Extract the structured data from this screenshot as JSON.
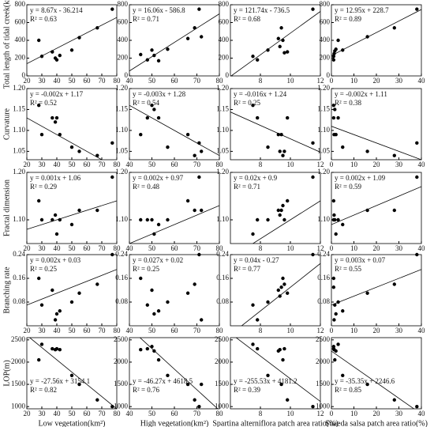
{
  "chart_data": [
    {
      "type": "scatter",
      "ylabel": "Total length of tidal creek(km)",
      "x": [
        28,
        30,
        37,
        40,
        42,
        50,
        55,
        67,
        77,
        39
      ],
      "values": [
        400,
        220,
        270,
        180,
        230,
        290,
        430,
        540,
        750,
        200
      ],
      "xlim": [
        20,
        80
      ],
      "xticks": [
        20,
        30,
        40,
        50,
        60,
        70,
        80
      ],
      "ylim": [
        0,
        800
      ],
      "yticks": [
        0,
        200,
        400,
        600,
        800
      ],
      "equation": "y = 8.67x - 36.214",
      "r2": "R² = 0.63",
      "fit": {
        "slope": 8.67,
        "intercept": -36.214
      }
    },
    {
      "type": "scatter",
      "x": [
        45,
        48,
        50,
        51,
        53,
        57,
        66,
        69,
        71,
        72
      ],
      "values": [
        240,
        180,
        290,
        230,
        170,
        300,
        420,
        540,
        750,
        440
      ],
      "xlim": [
        40,
        80
      ],
      "xticks": [
        40,
        50,
        60,
        70,
        80
      ],
      "ylim": [
        0,
        800
      ],
      "yticks": [
        0,
        200,
        400,
        600,
        800
      ],
      "equation": "y = 16.06x - 586.8",
      "r2": "R² = 0.71",
      "fit": {
        "slope": 16.06,
        "intercept": -586.8
      }
    },
    {
      "type": "scatter",
      "x": [
        7.5,
        7.8,
        8.5,
        9.2,
        9.4,
        9.5,
        9.6,
        9.8,
        11.5,
        9.3
      ],
      "values": [
        220,
        180,
        290,
        420,
        540,
        400,
        260,
        270,
        750,
        330
      ],
      "xlim": [
        6,
        12
      ],
      "xticks": [
        8,
        10,
        12
      ],
      "ylim": [
        0,
        800
      ],
      "yticks": [
        0,
        200,
        400,
        600,
        800
      ],
      "equation": "y = 121.74x - 736.5",
      "r2": "R² = 0.68",
      "fit": {
        "slope": 121.74,
        "intercept": -736.5
      }
    },
    {
      "type": "scatter",
      "x": [
        1,
        1,
        1.5,
        2,
        3,
        5,
        16,
        28,
        38,
        1.2
      ],
      "values": [
        180,
        220,
        280,
        300,
        400,
        290,
        440,
        540,
        750,
        250
      ],
      "xlim": [
        0,
        40
      ],
      "xticks": [
        0,
        10,
        20,
        30,
        40
      ],
      "ylim": [
        0,
        800
      ],
      "yticks": [
        0,
        200,
        400,
        600,
        800
      ],
      "equation": "y = 12.95x + 228.7",
      "r2": "R² = 0.89",
      "fit": {
        "slope": 12.95,
        "intercept": 228.7
      }
    },
    {
      "type": "scatter",
      "ylabel": "Curvature",
      "x": [
        28,
        30,
        37,
        40,
        42,
        50,
        55,
        67,
        77,
        39
      ],
      "values": [
        1.16,
        1.09,
        1.13,
        1.13,
        1.09,
        1.06,
        1.05,
        1.04,
        1.07,
        1.12
      ],
      "xlim": [
        20,
        80
      ],
      "xticks": [
        20,
        30,
        40,
        50,
        60,
        70,
        80
      ],
      "ylim": [
        1.03,
        1.2
      ],
      "yticks": [
        {
          "value": 1.05,
          "label": "1.05"
        },
        {
          "value": 1.1,
          "label": "1.10"
        },
        1.15,
        {
          "value": 1.2,
          "label": "1.20"
        }
      ],
      "equation": "y = -0.002x + 1.17",
      "r2": "R² = 0.52",
      "fit": {
        "slope": -0.002,
        "intercept": 1.17
      }
    },
    {
      "type": "scatter",
      "x": [
        45,
        48,
        50,
        51,
        53,
        57,
        66,
        69,
        71,
        72
      ],
      "values": [
        1.09,
        1.13,
        1.16,
        1.15,
        1.13,
        1.06,
        1.09,
        1.04,
        1.07,
        1.05
      ],
      "xlim": [
        40,
        80
      ],
      "xticks": [
        40,
        50,
        60,
        70,
        80
      ],
      "ylim": [
        1.03,
        1.2
      ],
      "yticks": [
        {
          "value": 1.05,
          "label": "1.05"
        },
        {
          "value": 1.1,
          "label": "1.10"
        },
        1.15,
        {
          "value": 1.2,
          "label": "1.20"
        }
      ],
      "equation": "y = -0.003x + 1.28",
      "r2": "R² = 0.54",
      "fit": {
        "slope": -0.003,
        "intercept": 1.28
      }
    },
    {
      "type": "scatter",
      "x": [
        7.5,
        7.8,
        8.5,
        9.2,
        9.4,
        9.5,
        9.6,
        9.8,
        11.5,
        9.3
      ],
      "values": [
        1.16,
        1.13,
        1.06,
        1.09,
        1.09,
        1.04,
        1.05,
        1.13,
        1.07,
        1.05
      ],
      "xlim": [
        6,
        12
      ],
      "xticks": [
        8,
        10,
        12
      ],
      "ylim": [
        1.03,
        1.2
      ],
      "yticks": [
        {
          "value": 1.05,
          "label": "1.05"
        },
        {
          "value": 1.1,
          "label": "1.10"
        },
        1.15,
        {
          "value": 1.2,
          "label": "1.20"
        }
      ],
      "equation": "y = -0.016x + 1.24",
      "r2": "R² = 0.25",
      "fit": {
        "slope": -0.016,
        "intercept": 1.24
      }
    },
    {
      "type": "scatter",
      "x": [
        1,
        1,
        1.5,
        2,
        3,
        5,
        16,
        28,
        38,
        1.2
      ],
      "values": [
        1.13,
        1.16,
        1.15,
        1.09,
        1.13,
        1.06,
        1.05,
        1.04,
        1.07,
        1.09
      ],
      "xlim": [
        0,
        40
      ],
      "xticks": [
        0,
        10,
        20,
        30,
        40
      ],
      "ylim": [
        1.03,
        1.2
      ],
      "yticks": [
        {
          "value": 1.05,
          "label": "1.05"
        },
        {
          "value": 1.1,
          "label": "1.10"
        },
        1.15,
        {
          "value": 1.2,
          "label": "1.20"
        }
      ],
      "equation": "y = -0.002x + 1.11",
      "r2": "R² = 0.38",
      "fit": {
        "slope": -0.002,
        "intercept": 1.11
      }
    },
    {
      "type": "scatter",
      "ylabel": "Fractal dimension",
      "x": [
        28,
        30,
        37,
        40,
        42,
        50,
        55,
        67,
        77,
        39
      ],
      "values": [
        1.14,
        1.1,
        1.1,
        1.07,
        1.1,
        1.09,
        1.12,
        1.12,
        1.19,
        1.11
      ],
      "xlim": [
        20,
        80
      ],
      "xticks": [
        20,
        30,
        40,
        50,
        60,
        70,
        80
      ],
      "ylim": [
        1.05,
        1.2
      ],
      "yticks": [
        {
          "value": 1.1,
          "label": "1.10"
        },
        {
          "value": 1.2,
          "label": "1.20"
        }
      ],
      "equation": "y = 0.001x + 1.06",
      "r2": "R² = 0.29",
      "fit": {
        "slope": 0.001,
        "intercept": 1.06
      }
    },
    {
      "type": "scatter",
      "x": [
        45,
        48,
        50,
        51,
        53,
        57,
        66,
        69,
        71,
        72
      ],
      "values": [
        1.1,
        1.1,
        1.1,
        1.07,
        1.09,
        1.1,
        1.14,
        1.12,
        1.19,
        1.12
      ],
      "xlim": [
        40,
        80
      ],
      "xticks": [
        40,
        50,
        60,
        70,
        80
      ],
      "ylim": [
        1.05,
        1.2
      ],
      "yticks": [
        {
          "value": 1.1,
          "label": "1.10"
        },
        {
          "value": 1.2,
          "label": "1.20"
        }
      ],
      "equation": "y = 0.002x + 0.97",
      "r2": "R² = 0.48",
      "fit": {
        "slope": 0.002,
        "intercept": 0.97
      }
    },
    {
      "type": "scatter",
      "x": [
        7.5,
        7.8,
        8.5,
        9.2,
        9.4,
        9.5,
        9.6,
        9.8,
        11.5,
        9.3
      ],
      "values": [
        1.07,
        1.1,
        1.1,
        1.12,
        1.12,
        1.13,
        1.1,
        1.14,
        1.19,
        1.11
      ],
      "xlim": [
        6,
        12
      ],
      "xticks": [
        8,
        10,
        12
      ],
      "ylim": [
        1.05,
        1.2
      ],
      "yticks": [
        {
          "value": 1.1,
          "label": "1.10"
        },
        {
          "value": 1.2,
          "label": "1.20"
        }
      ],
      "equation": "y = 0.02x + 0.9",
      "r2": "R² = 0.71",
      "fit": {
        "slope": 0.02,
        "intercept": 0.9
      }
    },
    {
      "type": "scatter",
      "x": [
        1,
        1,
        1.5,
        2,
        3,
        5,
        16,
        28,
        38,
        1.2
      ],
      "values": [
        1.1,
        1.14,
        1.1,
        1.07,
        1.1,
        1.09,
        1.12,
        1.12,
        1.19,
        1.11
      ],
      "xlim": [
        0,
        40
      ],
      "xticks": [
        0,
        10,
        20,
        30,
        40
      ],
      "ylim": [
        1.05,
        1.2
      ],
      "yticks": [
        {
          "value": 1.1,
          "label": "1.10"
        },
        {
          "value": 1.2,
          "label": "1.20"
        }
      ],
      "equation": "y = 0.002x + 1.09",
      "r2": "R² = 0.59",
      "fit": {
        "slope": 0.002,
        "intercept": 1.09
      }
    },
    {
      "type": "scatter",
      "ylabel": "Branching rate",
      "x": [
        28,
        30,
        37,
        40,
        42,
        50,
        55,
        67,
        77,
        39
      ],
      "values": [
        0.16,
        0.07,
        0.12,
        0.04,
        0.05,
        0.08,
        0.11,
        0.14,
        0.24,
        0.02
      ],
      "xlim": [
        20,
        80
      ],
      "xticks": [
        20,
        30,
        40,
        50,
        60,
        70,
        80
      ],
      "ylim": [
        0,
        0.24
      ],
      "yticks": [
        0.08,
        0.16,
        0.24
      ],
      "equation": "y = 0.002x + 0.03",
      "r2": "R² = 0.25",
      "fit": {
        "slope": 0.002,
        "intercept": 0.03
      }
    },
    {
      "type": "scatter",
      "x": [
        45,
        48,
        50,
        51,
        53,
        57,
        66,
        69,
        71,
        72
      ],
      "values": [
        0.16,
        0.07,
        0.12,
        0.04,
        0.05,
        0.08,
        0.11,
        0.14,
        0.24,
        0.02
      ],
      "xlim": [
        40,
        80
      ],
      "xticks": [
        40,
        50,
        60,
        70,
        80
      ],
      "ylim": [
        0,
        0.24
      ],
      "yticks": [
        0.08,
        0.16,
        0.24
      ],
      "equation": "y = 0.027x + 0.02",
      "r2": "R² = 0.25",
      "fit": {
        "slope": 0.027,
        "intercept": 0.02
      }
    },
    {
      "type": "scatter",
      "x": [
        7.5,
        7.8,
        8.5,
        9.2,
        9.4,
        9.5,
        9.6,
        9.8,
        11.5,
        9.3
      ],
      "values": [
        0.07,
        0.02,
        0.08,
        0.12,
        0.13,
        0.16,
        0.14,
        0.11,
        0.24,
        0.1
      ],
      "xlim": [
        6,
        12
      ],
      "xticks": [
        8,
        10,
        12
      ],
      "ylim": [
        0,
        0.24
      ],
      "yticks": [
        0.08,
        0.16,
        0.24
      ],
      "equation": "y = 0.04x - 0.27",
      "r2": "R² = 0.77",
      "fit": {
        "slope": 0.04,
        "intercept": -0.27
      }
    },
    {
      "type": "scatter",
      "x": [
        1,
        1,
        1.5,
        2,
        3,
        5,
        16,
        28,
        38,
        1.2
      ],
      "values": [
        0.16,
        0.13,
        0.07,
        0.04,
        0.08,
        0.05,
        0.11,
        0.14,
        0.24,
        0.02
      ],
      "xlim": [
        0,
        40
      ],
      "xticks": [
        0,
        10,
        20,
        30,
        40
      ],
      "ylim": [
        0,
        0.24
      ],
      "yticks": [
        0.08,
        0.16,
        0.24
      ],
      "equation": "y = 0.003x + 0.07",
      "r2": "R² = 0.55",
      "fit": {
        "slope": 0.003,
        "intercept": 0.07
      }
    },
    {
      "type": "scatter",
      "ylabel": "LOP(m)",
      "xlabel": "Low vegetation(km²)",
      "x": [
        28,
        30,
        37,
        40,
        42,
        50,
        55,
        67,
        77,
        39
      ],
      "values": [
        2050,
        2400,
        2300,
        2300,
        2280,
        1700,
        1500,
        1150,
        1000,
        2280
      ],
      "xlim": [
        20,
        80
      ],
      "xticks": [
        20,
        30,
        40,
        50,
        60,
        70,
        80
      ],
      "ylim": [
        950,
        2550
      ],
      "yticks": [
        1000,
        1500,
        2000,
        2500
      ],
      "equation": "y = -27.56x + 3154.1",
      "r2": "R² = 0.82",
      "fit": {
        "slope": -27.56,
        "intercept": 3154.1
      }
    },
    {
      "type": "scatter",
      "xlabel": "High vegetation(km²)",
      "x": [
        45,
        48,
        50,
        51,
        53,
        57,
        66,
        69,
        71,
        72
      ],
      "values": [
        2280,
        2300,
        2350,
        2250,
        2050,
        1700,
        1500,
        1150,
        1000,
        1500
      ],
      "xlim": [
        40,
        80
      ],
      "xticks": [
        40,
        50,
        60,
        70,
        80
      ],
      "ylim": [
        950,
        2550
      ],
      "yticks": [
        1000,
        1500,
        2000,
        2500
      ],
      "equation": "y = -46.27x + 4618.5",
      "r2": "R² = 0.76",
      "fit": {
        "slope": -46.27,
        "intercept": 4618.5
      }
    },
    {
      "type": "scatter",
      "xlabel": "Spartina alterniflora patch area ratio(%)",
      "x": [
        7.5,
        7.8,
        8.5,
        9.2,
        9.4,
        9.5,
        9.6,
        9.8,
        11.5,
        9.3
      ],
      "values": [
        2400,
        2300,
        1700,
        2250,
        1500,
        2050,
        2300,
        1150,
        1000,
        2280
      ],
      "xlim": [
        6,
        12
      ],
      "xticks": [
        8,
        10,
        12
      ],
      "ylim": [
        950,
        2550
      ],
      "yticks": [
        1000,
        1500,
        2000,
        2500
      ],
      "equation": "y = -255.53x + 4181.2",
      "r2": "R² = 0.39",
      "fit": {
        "slope": -255.53,
        "intercept": 4181.2
      }
    },
    {
      "type": "scatter",
      "xlabel": "Suaeda salsa patch area ratio(%)",
      "x": [
        1,
        1,
        1.5,
        2,
        3,
        5,
        16,
        28,
        38,
        1.2
      ],
      "values": [
        2350,
        2300,
        2050,
        2250,
        2400,
        1700,
        1500,
        1150,
        1000,
        2280
      ],
      "xlim": [
        0,
        40
      ],
      "xticks": [
        0,
        10,
        20,
        30,
        40
      ],
      "ylim": [
        950,
        2550
      ],
      "yticks": [
        1000,
        1500,
        2000,
        2500
      ],
      "equation": "y = -35.35x + 2246.6",
      "r2": "R² = 0.85",
      "fit": {
        "slope": -35.35,
        "intercept": 2246.6
      }
    }
  ]
}
